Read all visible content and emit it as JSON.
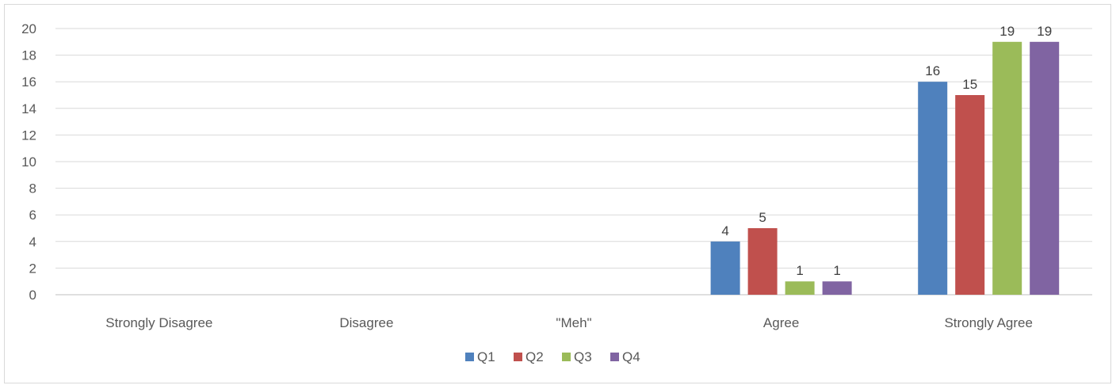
{
  "chart_data": {
    "type": "bar",
    "title": "",
    "xlabel": "",
    "ylabel": "",
    "categories": [
      "Strongly Disagree",
      "Disagree",
      "\"Meh\"",
      "Agree",
      "Strongly Agree"
    ],
    "series": [
      {
        "name": "Q1",
        "color": "#4f81bd",
        "values": [
          0,
          0,
          0,
          4,
          16
        ]
      },
      {
        "name": "Q2",
        "color": "#c0504d",
        "values": [
          0,
          0,
          0,
          5,
          15
        ]
      },
      {
        "name": "Q3",
        "color": "#9bbb59",
        "values": [
          0,
          0,
          0,
          1,
          19
        ]
      },
      {
        "name": "Q4",
        "color": "#8064a2",
        "values": [
          0,
          0,
          0,
          1,
          19
        ]
      }
    ],
    "ylim": [
      0,
      20
    ],
    "yticks": [
      0,
      2,
      4,
      6,
      8,
      10,
      12,
      14,
      16,
      18,
      20
    ],
    "grid": true,
    "legend_position": "bottom",
    "data_labels_shown_for_nonzero": true
  }
}
